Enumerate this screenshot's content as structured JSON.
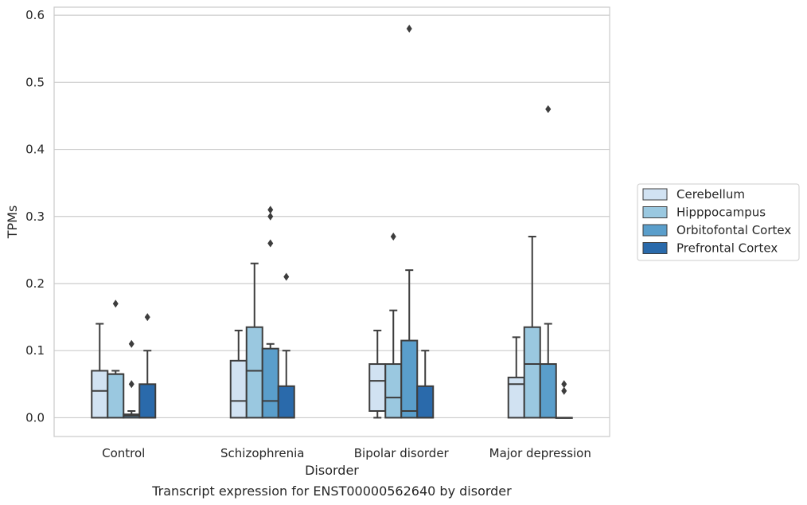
{
  "chart_data": {
    "type": "box",
    "caption": "Transcript expression for ENST00000562640 by disorder",
    "xlabel": "Disorder",
    "ylabel": "TPMs",
    "ylim": [
      -0.028,
      0.612
    ],
    "yticks": [
      0.0,
      0.1,
      0.2,
      0.3,
      0.4,
      0.5,
      0.6
    ],
    "ytick_labels": [
      "0.0",
      "0.1",
      "0.2",
      "0.3",
      "0.4",
      "0.5",
      "0.6"
    ],
    "grid": "horizontal",
    "legend_placement": "right",
    "categories": [
      "Control",
      "Schizophrenia",
      "Bipolar disorder",
      "Major depression"
    ],
    "series": [
      {
        "name": "Cerebellum",
        "color": "#d1e2f2",
        "boxes": [
          {
            "q1": 0.0,
            "median": 0.04,
            "q3": 0.07,
            "whisker_low": 0.0,
            "whisker_high": 0.14,
            "outliers": []
          },
          {
            "q1": 0.0,
            "median": 0.025,
            "q3": 0.085,
            "whisker_low": 0.0,
            "whisker_high": 0.13,
            "outliers": []
          },
          {
            "q1": 0.01,
            "median": 0.055,
            "q3": 0.08,
            "whisker_low": 0.0,
            "whisker_high": 0.13,
            "outliers": []
          },
          {
            "q1": 0.0,
            "median": 0.05,
            "q3": 0.06,
            "whisker_low": 0.0,
            "whisker_high": 0.12,
            "outliers": []
          }
        ]
      },
      {
        "name": "Hipppocampus",
        "color": "#9ac8e0",
        "boxes": [
          {
            "q1": 0.0,
            "median": 0.065,
            "q3": 0.065,
            "whisker_low": 0.0,
            "whisker_high": 0.07,
            "outliers": [
              0.17
            ]
          },
          {
            "q1": 0.0,
            "median": 0.07,
            "q3": 0.135,
            "whisker_low": 0.0,
            "whisker_high": 0.23,
            "outliers": []
          },
          {
            "q1": 0.0,
            "median": 0.03,
            "q3": 0.08,
            "whisker_low": 0.0,
            "whisker_high": 0.16,
            "outliers": [
              0.27
            ]
          },
          {
            "q1": 0.0,
            "median": 0.08,
            "q3": 0.135,
            "whisker_low": 0.0,
            "whisker_high": 0.27,
            "outliers": []
          }
        ]
      },
      {
        "name": "Orbitofontal Cortex",
        "color": "#5a9ecb",
        "boxes": [
          {
            "q1": 0.0,
            "median": 0.003,
            "q3": 0.005,
            "whisker_low": 0.0,
            "whisker_high": 0.01,
            "outliers": [
              0.05,
              0.11
            ]
          },
          {
            "q1": 0.0,
            "median": 0.025,
            "q3": 0.103,
            "whisker_low": 0.0,
            "whisker_high": 0.11,
            "outliers": [
              0.26,
              0.3,
              0.31
            ]
          },
          {
            "q1": 0.0,
            "median": 0.01,
            "q3": 0.115,
            "whisker_low": 0.0,
            "whisker_high": 0.22,
            "outliers": [
              0.58
            ]
          },
          {
            "q1": 0.0,
            "median": 0.08,
            "q3": 0.08,
            "whisker_low": 0.0,
            "whisker_high": 0.14,
            "outliers": [
              0.46
            ]
          }
        ]
      },
      {
        "name": "Prefrontal Cortex",
        "color": "#2a6aab",
        "boxes": [
          {
            "q1": 0.0,
            "median": 0.0,
            "q3": 0.05,
            "whisker_low": 0.0,
            "whisker_high": 0.1,
            "outliers": [
              0.15
            ]
          },
          {
            "q1": 0.0,
            "median": 0.0,
            "q3": 0.047,
            "whisker_low": 0.0,
            "whisker_high": 0.1,
            "outliers": [
              0.21
            ]
          },
          {
            "q1": 0.0,
            "median": 0.0,
            "q3": 0.047,
            "whisker_low": 0.0,
            "whisker_high": 0.1,
            "outliers": []
          },
          {
            "q1": 0.0,
            "median": 0.0,
            "q3": 0.0,
            "whisker_low": 0.0,
            "whisker_high": 0.0,
            "outliers": [
              0.04,
              0.05
            ]
          }
        ]
      }
    ]
  }
}
